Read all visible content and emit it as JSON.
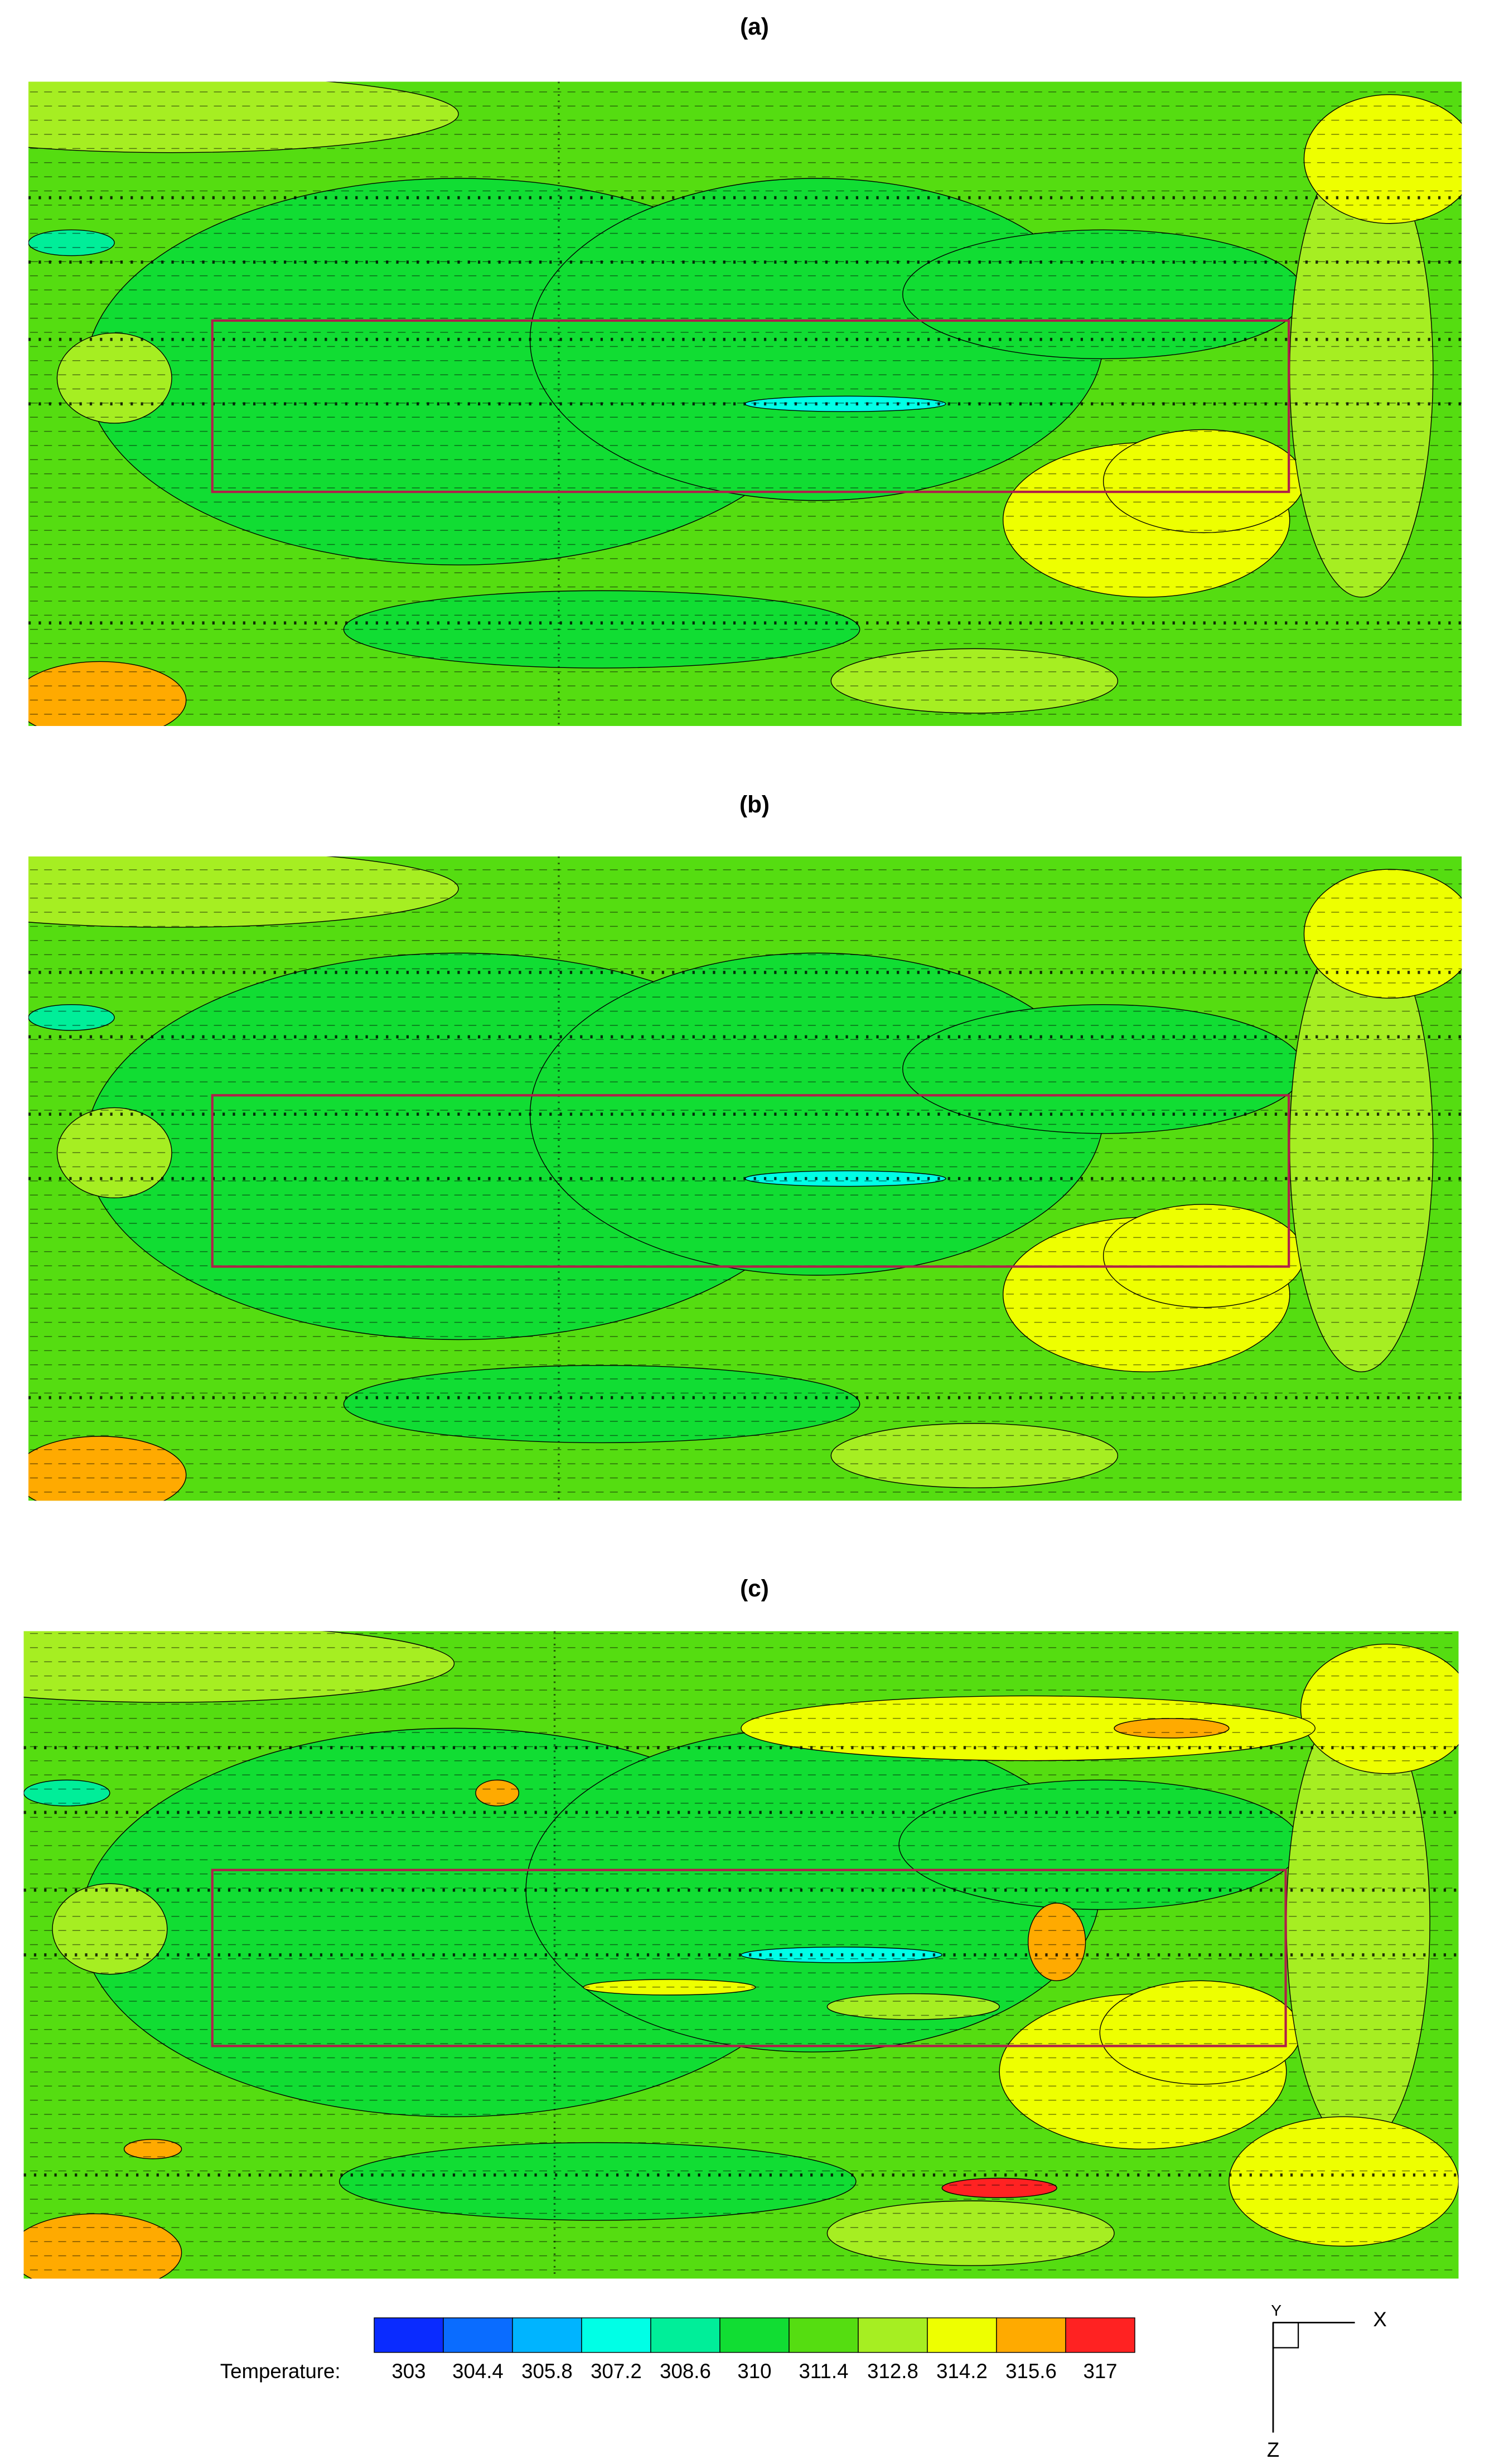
{
  "panels": [
    {
      "label": "(a)"
    },
    {
      "label": "(b)"
    },
    {
      "label": "(c)"
    }
  ],
  "colorbar": {
    "title": "Temperature:",
    "ticks": [
      303,
      304.4,
      305.8,
      307.2,
      308.6,
      310,
      311.4,
      312.8,
      314.2,
      315.6,
      317
    ],
    "colors": [
      "#0a2bff",
      "#0a6cff",
      "#00b4ff",
      "#00ffe6",
      "#00ee99",
      "#11dd33",
      "#55dd11",
      "#a6ee22",
      "#eeff00",
      "#ffaa00",
      "#ff2222"
    ]
  },
  "axes": {
    "x": "X",
    "y": "Y",
    "z": "Z"
  }
}
